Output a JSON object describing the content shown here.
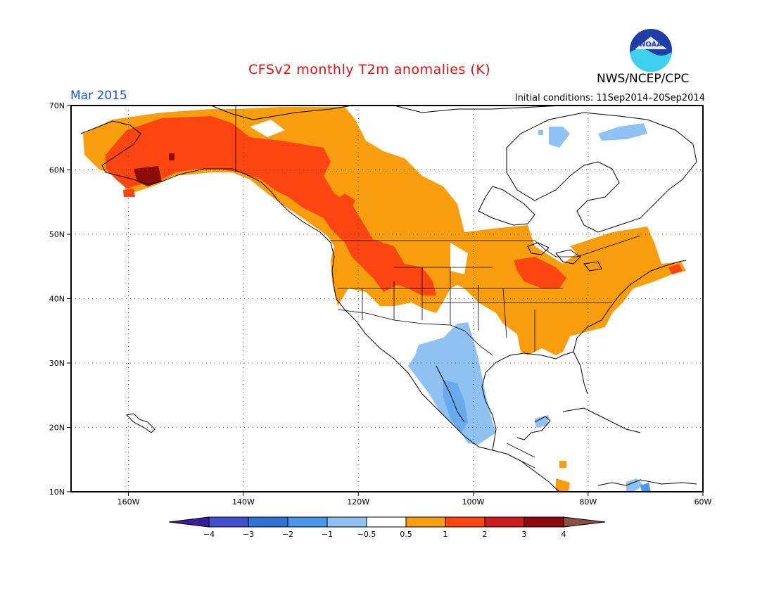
{
  "title": "CFSv2 monthly T2m anomalies (K)",
  "month": "Mar 2015",
  "initial_conditions": "Initial conditions: 11Sep2014–20Sep2014",
  "agency": "NWS/NCEP/CPC",
  "logo": {
    "text": "NOAA",
    "icon": "noaa-logo"
  },
  "map": {
    "lon_range": [
      -170,
      -60
    ],
    "lat_range": [
      10,
      70
    ],
    "lat_labels": [
      "70N",
      "60N",
      "50N",
      "40N",
      "30N",
      "20N",
      "10N"
    ],
    "lon_labels": [
      "160W",
      "140W",
      "120W",
      "100W",
      "80W",
      "60W"
    ]
  },
  "colors": {
    "m4": "#3a1d9e",
    "m3": "#3f4fcf",
    "m2": "#2f72d6",
    "m1": "#4a96ea",
    "m05": "#8fc2f3",
    "neutral": "#ffffff",
    "p05": "#f89d0d",
    "p1": "#fd4512",
    "p2": "#ce1c1c",
    "p3": "#8e0b0b",
    "p4": "#c79c8a",
    "p5": "#8a5040"
  },
  "colorbar_labels": [
    "−4",
    "−3",
    "−2",
    "−1",
    "−0.5",
    "0.5",
    "1",
    "2",
    "3",
    "4"
  ]
}
